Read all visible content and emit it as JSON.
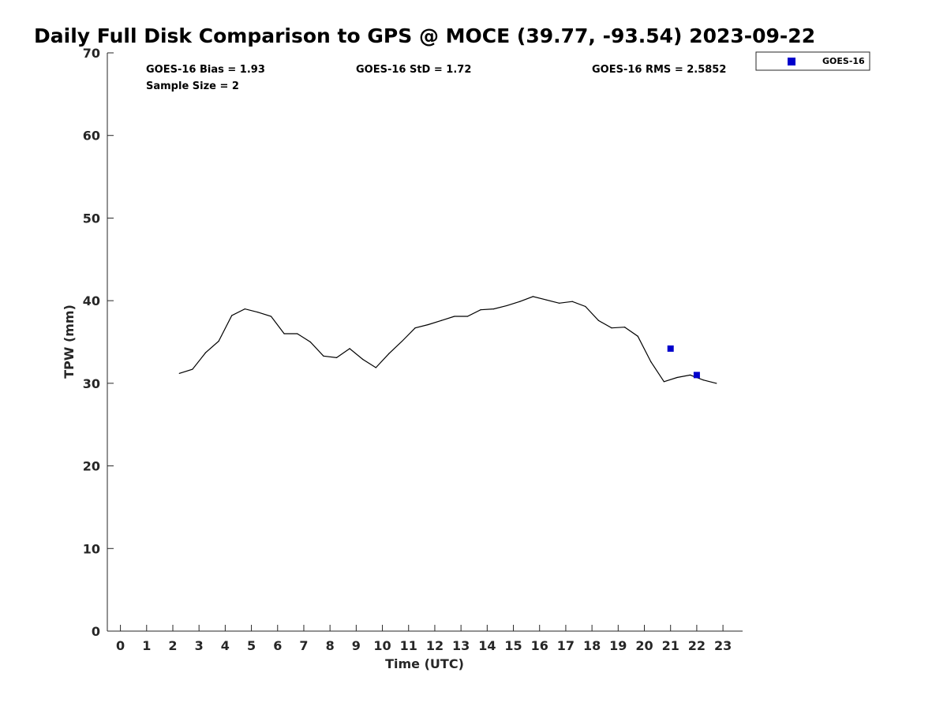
{
  "chart_data": {
    "type": "line",
    "title": "Daily Full Disk Comparison to GPS @ MOCE (39.77, -93.54) 2023-09-22",
    "xlabel": "Time (UTC)",
    "ylabel": "TPW (mm)",
    "xlim": [
      -0.5,
      23.75
    ],
    "ylim": [
      0,
      70
    ],
    "x_ticks": [
      "0",
      "1",
      "2",
      "3",
      "4",
      "5",
      "6",
      "7",
      "8",
      "9",
      "10",
      "11",
      "12",
      "13",
      "14",
      "15",
      "16",
      "17",
      "18",
      "19",
      "20",
      "21",
      "22",
      "23"
    ],
    "y_ticks": [
      "0",
      "10",
      "20",
      "30",
      "40",
      "50",
      "60",
      "70"
    ],
    "series": [
      {
        "name": "GPS",
        "style": "line",
        "color": "#000000",
        "x": [
          2.25,
          2.75,
          3.25,
          3.75,
          4.25,
          4.75,
          5.25,
          5.75,
          6.25,
          6.75,
          7.25,
          7.75,
          8.25,
          8.75,
          9.25,
          9.75,
          10.25,
          10.75,
          11.25,
          11.75,
          12.25,
          12.75,
          13.25,
          13.75,
          14.25,
          14.75,
          15.25,
          15.75,
          16.25,
          16.75,
          17.25,
          17.75,
          18.25,
          18.75,
          19.25,
          19.75,
          20.25,
          20.75,
          21.25,
          21.75,
          22.25,
          22.75
        ],
        "y": [
          31.2,
          31.7,
          33.7,
          35.1,
          38.2,
          39.0,
          38.6,
          38.1,
          36.0,
          36.0,
          35.0,
          33.3,
          33.1,
          34.2,
          32.9,
          31.9,
          33.6,
          35.1,
          36.7,
          37.1,
          37.6,
          38.1,
          38.1,
          38.9,
          39.0,
          39.4,
          39.9,
          40.5,
          40.1,
          39.7,
          39.9,
          39.3,
          37.6,
          36.7,
          36.8,
          35.7,
          32.6,
          30.2,
          30.7,
          31.0,
          30.4,
          30.0
        ]
      },
      {
        "name": "GOES-16",
        "style": "marker",
        "color": "#0000cc",
        "x": [
          21.0,
          22.0
        ],
        "y": [
          34.2,
          31.0
        ]
      }
    ],
    "legend": {
      "entries": [
        "GOES-16"
      ],
      "placement": "top-right outside"
    },
    "stats": {
      "bias": "GOES-16 Bias = 1.93",
      "std": "GOES-16 StD = 1.72",
      "rms": "GOES-16 RMS = 2.5852",
      "sample_size": "Sample Size = 2"
    }
  }
}
